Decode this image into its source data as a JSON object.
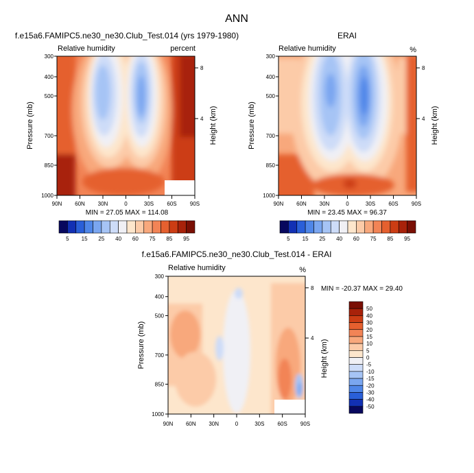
{
  "title": "ANN",
  "chart_data": [
    {
      "type": "heatmap",
      "title": "f.e15a6.FAMIPC5.ne30_ne30.Club_Test.014 (yrs 1979-1980)",
      "left_label": "Relative humidity",
      "right_label": "percent",
      "ylabel": "Pressure (mb)",
      "y2label": "Height (km)",
      "x_ticks": [
        "90N",
        "60N",
        "30N",
        "0",
        "30S",
        "60S",
        "90S"
      ],
      "y_ticks": [
        "300",
        "400",
        "500",
        "700",
        "850",
        "1000"
      ],
      "y2_ticks": [
        "8",
        "4"
      ],
      "stats": "MIN = 27.05  MAX = 114.08",
      "min": 27.05,
      "max": 114.08,
      "colorbar": {
        "labels": [
          "5",
          "15",
          "25",
          "40",
          "60",
          "75",
          "85",
          "95"
        ],
        "colors": [
          "#08085e",
          "#1230b4",
          "#2a5fd8",
          "#4f86e8",
          "#7aa6f0",
          "#a6c4f5",
          "#cddcf8",
          "#f0f0f5",
          "#fde6cc",
          "#fccba8",
          "#f8a87c",
          "#f28456",
          "#e5602f",
          "#cc3d14",
          "#a8220a",
          "#7a0f04"
        ]
      }
    },
    {
      "type": "heatmap",
      "title": "ERAI",
      "left_label": "Relative humidity",
      "right_label": "%",
      "ylabel": "Pressure (mb)",
      "y2label": "Height (km)",
      "x_ticks": [
        "90N",
        "60N",
        "30N",
        "0",
        "30S",
        "60S",
        "90S"
      ],
      "y_ticks": [
        "300",
        "400",
        "500",
        "700",
        "850",
        "1000"
      ],
      "y2_ticks": [
        "8",
        "4"
      ],
      "stats": "MIN = 23.45  MAX = 96.37",
      "min": 23.45,
      "max": 96.37,
      "colorbar": {
        "labels": [
          "5",
          "15",
          "25",
          "40",
          "60",
          "75",
          "85",
          "95"
        ],
        "colors": [
          "#08085e",
          "#1230b4",
          "#2a5fd8",
          "#4f86e8",
          "#7aa6f0",
          "#a6c4f5",
          "#cddcf8",
          "#f0f0f5",
          "#fde6cc",
          "#fccba8",
          "#f8a87c",
          "#f28456",
          "#e5602f",
          "#cc3d14",
          "#a8220a",
          "#7a0f04"
        ]
      }
    },
    {
      "type": "heatmap",
      "title": "f.e15a6.FAMIPC5.ne30_ne30.Club_Test.014 - ERAI",
      "left_label": "Relative humidity",
      "right_label": "%",
      "ylabel": "Pressure (mb)",
      "y2label": "Height (km)",
      "x_ticks": [
        "90N",
        "60N",
        "30N",
        "0",
        "30S",
        "60S",
        "90S"
      ],
      "y_ticks": [
        "300",
        "400",
        "500",
        "700",
        "850",
        "1000"
      ],
      "y2_ticks": [
        "8",
        "4"
      ],
      "stats": "MIN = -20.37  MAX = 29.40",
      "min": -20.37,
      "max": 29.4,
      "colorbar": {
        "labels": [
          "50",
          "40",
          "30",
          "20",
          "15",
          "10",
          "5",
          "0",
          "-5",
          "-10",
          "-15",
          "-20",
          "-30",
          "-40",
          "-50"
        ],
        "colors": [
          "#7a0f04",
          "#a8220a",
          "#cc3d14",
          "#e5602f",
          "#f28456",
          "#f8a87c",
          "#fccba8",
          "#fde6cc",
          "#f0f0f5",
          "#cddcf8",
          "#a6c4f5",
          "#7aa6f0",
          "#4f86e8",
          "#2a5fd8",
          "#1230b4",
          "#08085e"
        ]
      }
    }
  ]
}
